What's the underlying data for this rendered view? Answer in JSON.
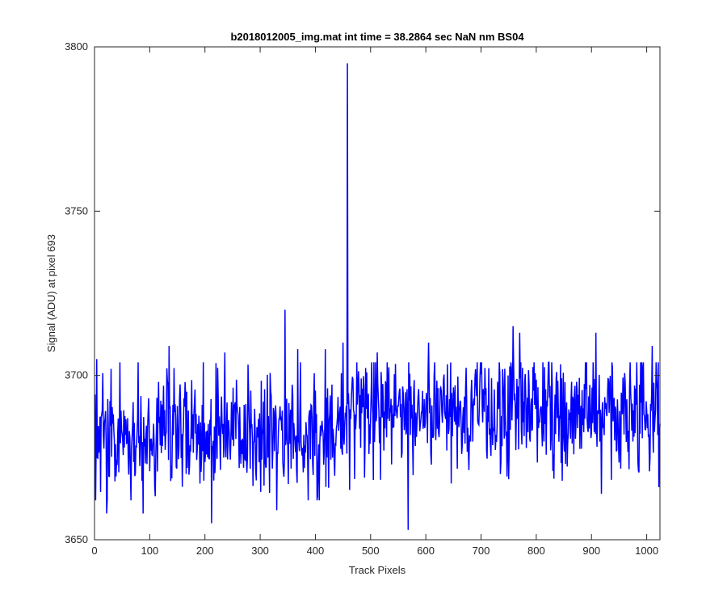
{
  "chart_data": {
    "type": "line",
    "title": "b2018012005_img.mat int time = 38.2864 sec  NaN nm BS04",
    "xlabel": "Track Pixels",
    "ylabel": "Signal (ADU) at pixel 693",
    "xlim": [
      0,
      1024
    ],
    "ylim": [
      3650,
      3800
    ],
    "xticks": [
      0,
      100,
      200,
      300,
      400,
      500,
      600,
      700,
      800,
      900,
      1000
    ],
    "yticks": [
      3650,
      3700,
      3750,
      3800
    ],
    "grid": false,
    "line_color": "#0000ff",
    "series": [
      {
        "x_start": 1,
        "x_step": 1,
        "baseline_before": 3682,
        "baseline_after": 3689,
        "baseline_change_x": 450,
        "noise_std": 9,
        "seed": 20180120,
        "notable_points": [
          {
            "x": 2,
            "y": 3662
          },
          {
            "x": 4,
            "y": 3705
          },
          {
            "x": 22,
            "y": 3658
          },
          {
            "x": 30,
            "y": 3702
          },
          {
            "x": 88,
            "y": 3658
          },
          {
            "x": 135,
            "y": 3709
          },
          {
            "x": 212,
            "y": 3655
          },
          {
            "x": 236,
            "y": 3707
          },
          {
            "x": 330,
            "y": 3659
          },
          {
            "x": 345,
            "y": 3720
          },
          {
            "x": 368,
            "y": 3708
          },
          {
            "x": 418,
            "y": 3708
          },
          {
            "x": 450,
            "y": 3710
          },
          {
            "x": 458,
            "y": 3795
          },
          {
            "x": 512,
            "y": 3707
          },
          {
            "x": 568,
            "y": 3653
          },
          {
            "x": 605,
            "y": 3710
          },
          {
            "x": 758,
            "y": 3715
          },
          {
            "x": 770,
            "y": 3713
          },
          {
            "x": 908,
            "y": 3713
          },
          {
            "x": 918,
            "y": 3664
          },
          {
            "x": 1010,
            "y": 3709
          },
          {
            "x": 1022,
            "y": 3666
          }
        ]
      }
    ]
  }
}
